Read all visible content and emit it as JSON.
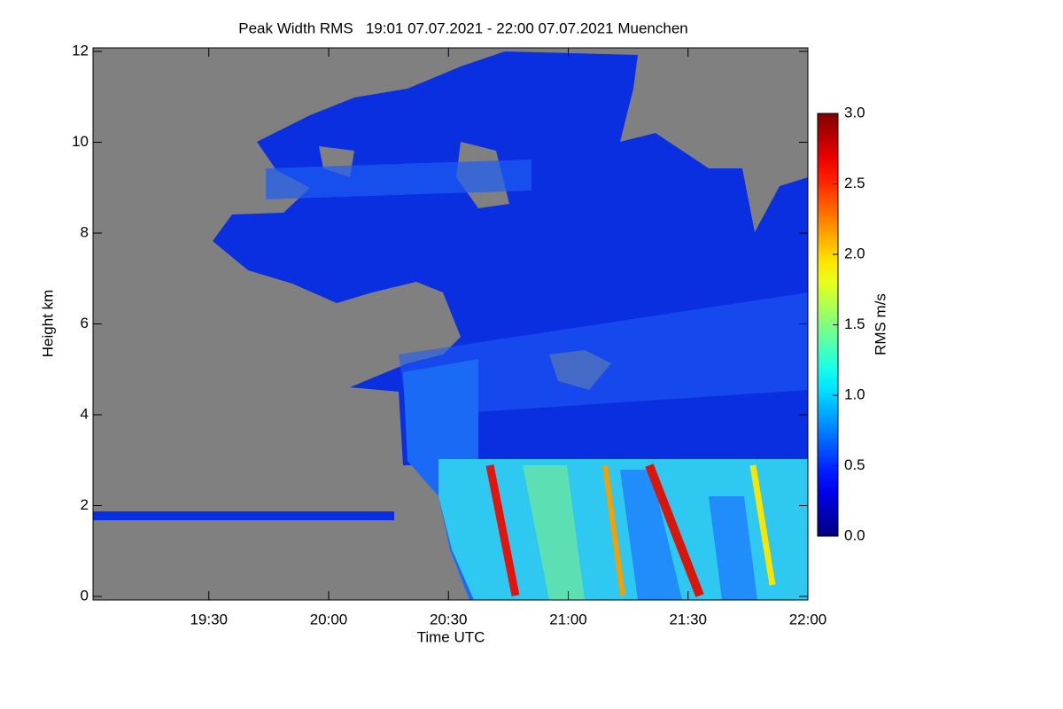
{
  "chart_data": {
    "type": "heatmap",
    "title": "Peak Width RMS   19:01 07.07.2021 - 22:00 07.07.2021 Muenchen",
    "x_label": "Time UTC",
    "y_label": "Height km",
    "xlim": [
      "19:01",
      "22:00"
    ],
    "xticks": [
      "19:30",
      "20:00",
      "20:30",
      "21:00",
      "21:30",
      "22:00"
    ],
    "ylim": [
      0,
      12
    ],
    "yticks": [
      0,
      2,
      4,
      6,
      8,
      10,
      12
    ],
    "colorbar": {
      "label": "RMS m/s",
      "colormap": "jet",
      "zlim": [
        0,
        3
      ],
      "zticks": [
        {
          "value": 0,
          "label": "0.0"
        },
        {
          "value": 0.5,
          "label": "0.5"
        },
        {
          "value": 1,
          "label": "1.0"
        },
        {
          "value": 1.5,
          "label": "1.5"
        },
        {
          "value": 2,
          "label": "2.0"
        },
        {
          "value": 2.5,
          "label": "2.5"
        },
        {
          "value": 3,
          "label": "3.0"
        }
      ]
    },
    "background": "#808080"
  }
}
